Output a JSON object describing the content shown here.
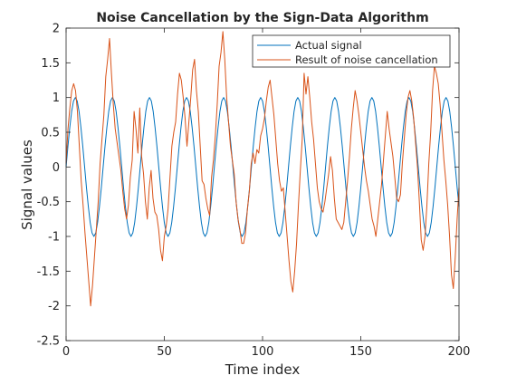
{
  "chart_data": {
    "type": "line",
    "title": "Noise Cancellation by the Sign-Data Algorithm",
    "xlabel": "Time index",
    "ylabel": "Signal values",
    "xlim": [
      0,
      200
    ],
    "ylim": [
      -2.5,
      2
    ],
    "xticks": [
      0,
      50,
      100,
      150,
      200
    ],
    "yticks": [
      -2.5,
      -2,
      -1.5,
      -1,
      -0.5,
      0,
      0.5,
      1,
      1.5,
      2
    ],
    "xtick_labels": [
      "0",
      "50",
      "100",
      "150",
      "200"
    ],
    "ytick_labels": [
      "-2.5",
      "-2",
      "-1.5",
      "-1",
      "-0.5",
      "0",
      "0.5",
      "1",
      "1.5",
      "2"
    ],
    "grid": false,
    "legend_position": "top-right",
    "series": [
      {
        "name": "Actual signal",
        "color": "#0072BD",
        "values": [
          0.0,
          0.3,
          0.57,
          0.8,
          0.95,
          1.0,
          0.95,
          0.8,
          0.57,
          0.3,
          0.0,
          -0.3,
          -0.57,
          -0.8,
          -0.95,
          -1.0,
          -0.95,
          -0.8,
          -0.57,
          -0.3,
          0.0,
          0.3,
          0.57,
          0.8,
          0.95,
          1.0,
          0.95,
          0.8,
          0.57,
          0.3,
          0.0,
          -0.3,
          -0.57,
          -0.8,
          -0.95,
          -1.0,
          -0.95,
          -0.8,
          -0.57,
          -0.3,
          0.0,
          0.3,
          0.57,
          0.8,
          0.95,
          1.0,
          0.95,
          0.8,
          0.57,
          0.3,
          0.0,
          -0.3,
          -0.57,
          -0.8,
          -0.95,
          -1.0,
          -0.95,
          -0.8,
          -0.57,
          -0.3,
          0.0,
          0.3,
          0.57,
          0.8,
          0.95,
          1.0,
          0.95,
          0.8,
          0.57,
          0.3,
          0.0,
          -0.3,
          -0.57,
          -0.8,
          -0.95,
          -1.0,
          -0.95,
          -0.8,
          -0.57,
          -0.3,
          0.0,
          0.3,
          0.57,
          0.8,
          0.95,
          1.0,
          0.95,
          0.8,
          0.57,
          0.3,
          0.0,
          -0.3,
          -0.57,
          -0.8,
          -0.95,
          -1.0,
          -0.95,
          -0.8,
          -0.57,
          -0.3,
          0.0,
          0.3,
          0.57,
          0.8,
          0.95,
          1.0,
          0.95,
          0.8,
          0.57,
          0.3,
          0.0,
          -0.3,
          -0.57,
          -0.8,
          -0.95,
          -1.0,
          -0.95,
          -0.8,
          -0.57,
          -0.3,
          0.0,
          0.3,
          0.57,
          0.8,
          0.95,
          1.0,
          0.95,
          0.8,
          0.57,
          0.3,
          0.0,
          -0.3,
          -0.57,
          -0.8,
          -0.95,
          -1.0,
          -0.95,
          -0.8,
          -0.57,
          -0.3,
          0.0,
          0.3,
          0.57,
          0.8,
          0.95,
          1.0,
          0.95,
          0.8,
          0.57,
          0.3,
          0.0,
          -0.3,
          -0.57,
          -0.8,
          -0.95,
          -1.0,
          -0.95,
          -0.8,
          -0.57,
          -0.3,
          0.0,
          0.3,
          0.57,
          0.8,
          0.95,
          1.0,
          0.95,
          0.8,
          0.57,
          0.3,
          0.0,
          -0.3,
          -0.57,
          -0.8,
          -0.95,
          -1.0,
          -0.95,
          -0.8,
          -0.57,
          -0.3,
          0.0,
          0.3,
          0.57,
          0.8,
          0.95,
          1.0,
          0.95,
          0.8,
          0.57,
          0.3,
          0.0,
          -0.3,
          -0.57,
          -0.8,
          -0.95,
          -1.0,
          -0.95,
          -0.8,
          -0.57,
          -0.3,
          0.0,
          0.3,
          0.57,
          0.8,
          0.95,
          1.0,
          0.95,
          0.8,
          0.57,
          0.3,
          0.0,
          -0.3,
          -0.57
        ]
      },
      {
        "name": "Result of noise cancellation",
        "color": "#D95319",
        "values": [
          0.05,
          0.55,
          0.85,
          1.1,
          1.2,
          1.1,
          0.8,
          0.3,
          -0.2,
          -0.55,
          -0.95,
          -1.3,
          -1.65,
          -2.0,
          -1.7,
          -1.3,
          -0.9,
          -0.5,
          0.05,
          0.4,
          0.75,
          1.3,
          1.55,
          1.85,
          1.35,
          0.9,
          0.55,
          0.35,
          0.15,
          -0.05,
          -0.35,
          -0.6,
          -0.75,
          -0.55,
          -0.15,
          0.1,
          0.8,
          0.55,
          0.2,
          0.85,
          0.15,
          -0.1,
          -0.5,
          -0.75,
          -0.3,
          -0.05,
          -0.45,
          -0.65,
          -0.7,
          -0.9,
          -1.2,
          -1.35,
          -1.0,
          -0.85,
          -0.6,
          -0.15,
          0.3,
          0.5,
          0.65,
          1.05,
          1.35,
          1.25,
          1.0,
          0.7,
          0.3,
          0.65,
          1.0,
          1.4,
          1.55,
          1.1,
          0.8,
          0.3,
          -0.2,
          -0.25,
          -0.45,
          -0.6,
          -0.7,
          -0.15,
          0.1,
          0.45,
          0.9,
          1.45,
          1.65,
          1.95,
          1.55,
          1.0,
          0.65,
          0.3,
          0.1,
          -0.1,
          -0.5,
          -0.75,
          -0.9,
          -1.1,
          -1.1,
          -0.95,
          -0.6,
          -0.35,
          0.05,
          0.2,
          0.05,
          0.25,
          0.2,
          0.45,
          0.55,
          0.7,
          0.95,
          1.15,
          1.25,
          1.0,
          0.75,
          0.4,
          0.05,
          -0.2,
          -0.35,
          -0.3,
          -0.65,
          -1.0,
          -1.35,
          -1.65,
          -1.8,
          -1.5,
          -1.1,
          -0.55,
          -0.05,
          0.4,
          1.35,
          1.05,
          1.3,
          1.0,
          0.65,
          0.4,
          0.05,
          -0.3,
          -0.5,
          -0.6,
          -0.65,
          -0.5,
          -0.3,
          -0.1,
          0.15,
          -0.05,
          -0.45,
          -0.75,
          -0.8,
          -0.85,
          -0.9,
          -0.8,
          -0.5,
          -0.2,
          0.15,
          0.55,
          0.85,
          1.1,
          0.95,
          0.75,
          0.5,
          0.25,
          0.0,
          -0.2,
          -0.35,
          -0.55,
          -0.75,
          -0.85,
          -1.0,
          -0.75,
          -0.5,
          -0.25,
          0.1,
          0.45,
          0.8,
          0.55,
          0.35,
          0.15,
          -0.15,
          -0.45,
          -0.5,
          -0.4,
          0.05,
          0.4,
          0.75,
          1.0,
          1.1,
          0.95,
          0.7,
          0.35,
          0.0,
          -0.5,
          -1.05,
          -1.2,
          -1.0,
          -0.55,
          0.05,
          0.5,
          1.1,
          1.45,
          1.35,
          1.2,
          0.9,
          0.5,
          0.1,
          -0.2,
          -0.55,
          -1.0,
          -1.55,
          -1.75,
          -1.3,
          -0.75,
          -0.3
        ]
      }
    ]
  }
}
